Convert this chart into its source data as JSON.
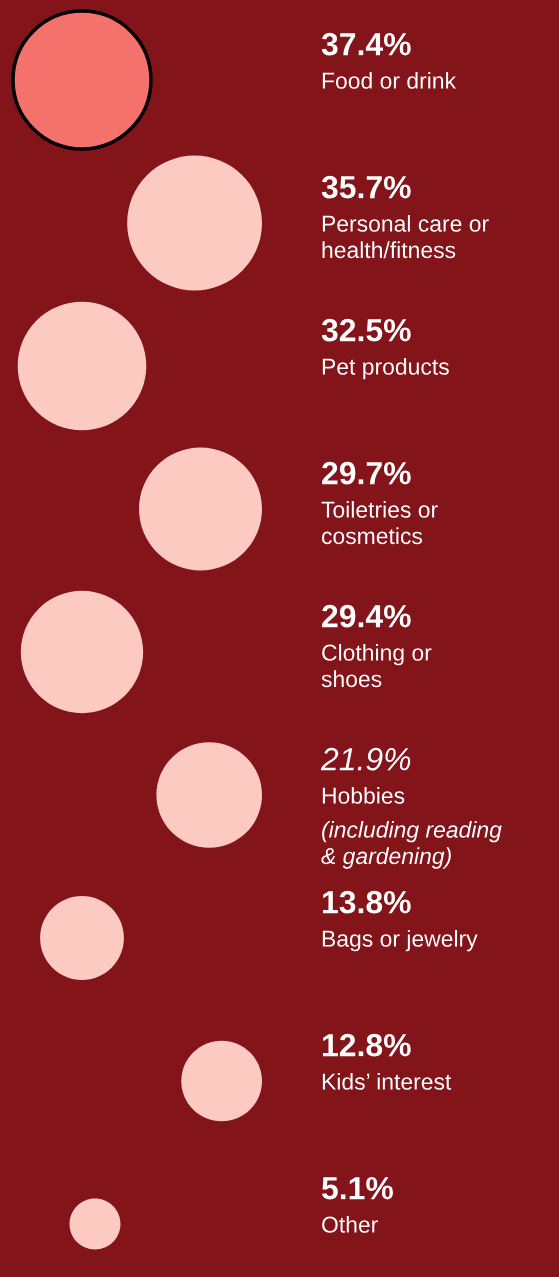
{
  "chart_data": {
    "type": "other",
    "categories": [
      "Food or drink",
      "Personal care or\nhealth/fitness",
      "Pet products",
      "Toiletries or\ncosmetics",
      "Clothing or\nshoes",
      "Hobbies",
      "Bags or jewelry",
      "Kids’ interest",
      "Other"
    ],
    "values": [
      37.4,
      35.7,
      32.5,
      29.7,
      29.4,
      21.9,
      13.8,
      12.8,
      5.1
    ],
    "value_labels": [
      "37.4%",
      "35.7%",
      "32.5%",
      "29.7%",
      "29.4%",
      "21.9%",
      "13.8%",
      "12.8%",
      "5.1%"
    ],
    "colors": [
      "#f4716c",
      "#fdcac2",
      "#fdcac2",
      "#fdcac2",
      "#fdcac2",
      "#fdcac2",
      "#fdcac2",
      "#fdcac2",
      "#fdcac2"
    ],
    "annotations": [
      {
        "text": "(including reading\n& gardening)",
        "x": "Hobbies"
      }
    ]
  }
}
